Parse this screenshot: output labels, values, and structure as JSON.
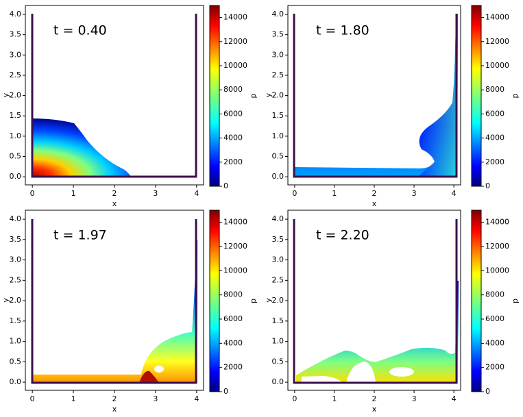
{
  "chart_data": [
    {
      "type": "field",
      "title": "t = 0.40",
      "xlabel": "x",
      "ylabel": "y",
      "colorbar_label": "p",
      "xlim": [
        -0.17,
        4.17
      ],
      "ylim": [
        -0.2,
        4.22
      ],
      "xticks": [
        0,
        1,
        2,
        3,
        4
      ],
      "yticks": [
        {
          "value": 0,
          "label": "0.0"
        },
        0.5,
        {
          "value": 1,
          "label": "1.0"
        },
        1.5,
        {
          "value": 2,
          "label": "2.0"
        },
        2.5,
        {
          "value": 3,
          "label": "3.0"
        },
        3.5,
        {
          "value": 4,
          "label": "4.0"
        }
      ],
      "clim": [
        0,
        15000
      ],
      "cticks": [
        0,
        2000,
        4000,
        6000,
        8000,
        10000,
        12000,
        14000
      ],
      "colormap": "jet"
    },
    {
      "type": "field",
      "title": "t = 1.80",
      "xlabel": "x",
      "ylabel": "y",
      "colorbar_label": "p",
      "xlim": [
        -0.17,
        4.17
      ],
      "ylim": [
        -0.2,
        4.22
      ],
      "xticks": [
        0,
        1,
        2,
        3,
        4
      ],
      "yticks": [
        {
          "value": 0,
          "label": "0.0"
        },
        0.5,
        {
          "value": 1,
          "label": "1.0"
        },
        1.5,
        {
          "value": 2,
          "label": "2.0"
        },
        2.5,
        {
          "value": 3,
          "label": "3.0"
        },
        3.5,
        {
          "value": 4,
          "label": "4.0"
        }
      ],
      "clim": [
        0,
        15000
      ],
      "cticks": [
        0,
        2000,
        4000,
        6000,
        8000,
        10000,
        12000,
        14000
      ],
      "colormap": "jet"
    },
    {
      "type": "field",
      "title": "t = 1.97",
      "xlabel": "x",
      "ylabel": "y",
      "colorbar_label": "p",
      "xlim": [
        -0.17,
        4.17
      ],
      "ylim": [
        -0.2,
        4.22
      ],
      "xticks": [
        0,
        1,
        2,
        3,
        4
      ],
      "yticks": [
        {
          "value": 0,
          "label": "0.0"
        },
        0.5,
        {
          "value": 1,
          "label": "1.0"
        },
        1.5,
        {
          "value": 2,
          "label": "2.0"
        },
        2.5,
        {
          "value": 3,
          "label": "3.0"
        },
        3.5,
        {
          "value": 4,
          "label": "4.0"
        }
      ],
      "clim": [
        0,
        15000
      ],
      "cticks": [
        0,
        2000,
        4000,
        6000,
        8000,
        10000,
        12000,
        14000
      ],
      "colormap": "jet"
    },
    {
      "type": "field",
      "title": "t = 2.20",
      "xlabel": "x",
      "ylabel": "y",
      "colorbar_label": "p",
      "xlim": [
        -0.17,
        4.17
      ],
      "ylim": [
        -0.2,
        4.22
      ],
      "xticks": [
        0,
        1,
        2,
        3,
        4
      ],
      "yticks": [
        {
          "value": 0,
          "label": "0.0"
        },
        0.5,
        {
          "value": 1,
          "label": "1.0"
        },
        1.5,
        {
          "value": 2,
          "label": "2.0"
        },
        2.5,
        {
          "value": 3,
          "label": "3.0"
        },
        3.5,
        {
          "value": 4,
          "label": "4.0"
        }
      ],
      "clim": [
        0,
        15000
      ],
      "cticks": [
        0,
        2000,
        4000,
        6000,
        8000,
        10000,
        12000,
        14000
      ],
      "colormap": "jet"
    }
  ]
}
